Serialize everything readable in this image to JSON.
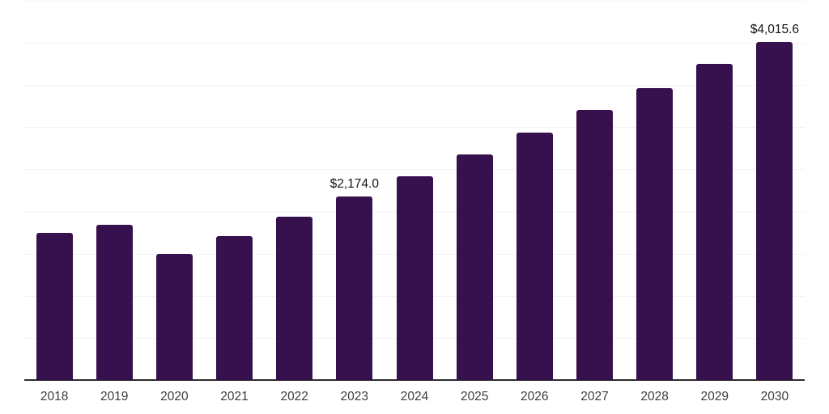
{
  "chart_data": {
    "type": "bar",
    "title": "",
    "xlabel": "",
    "ylabel": "",
    "categories": [
      "2018",
      "2019",
      "2020",
      "2021",
      "2022",
      "2023",
      "2024",
      "2025",
      "2026",
      "2027",
      "2028",
      "2029",
      "2030"
    ],
    "values": [
      1744,
      1844,
      1499,
      1705,
      1935,
      2174.0,
      2414,
      2673,
      2941,
      3209,
      3466,
      3752,
      4015.6
    ],
    "ylim": [
      0,
      4500
    ],
    "gridline_step": 500,
    "grid": "horizontal-only",
    "legend_position": "none",
    "data_labels": [
      {
        "index": 5,
        "text": "$2,174.0"
      },
      {
        "index": 12,
        "text": "$4,015.6"
      }
    ],
    "colors": {
      "bar": "#37114E",
      "gridline": "#F2F2F2",
      "axis_line": "#2B2B2B",
      "tick_label": "#3D3D3D",
      "data_label": "#141414",
      "background": "#FFFFFF"
    }
  }
}
